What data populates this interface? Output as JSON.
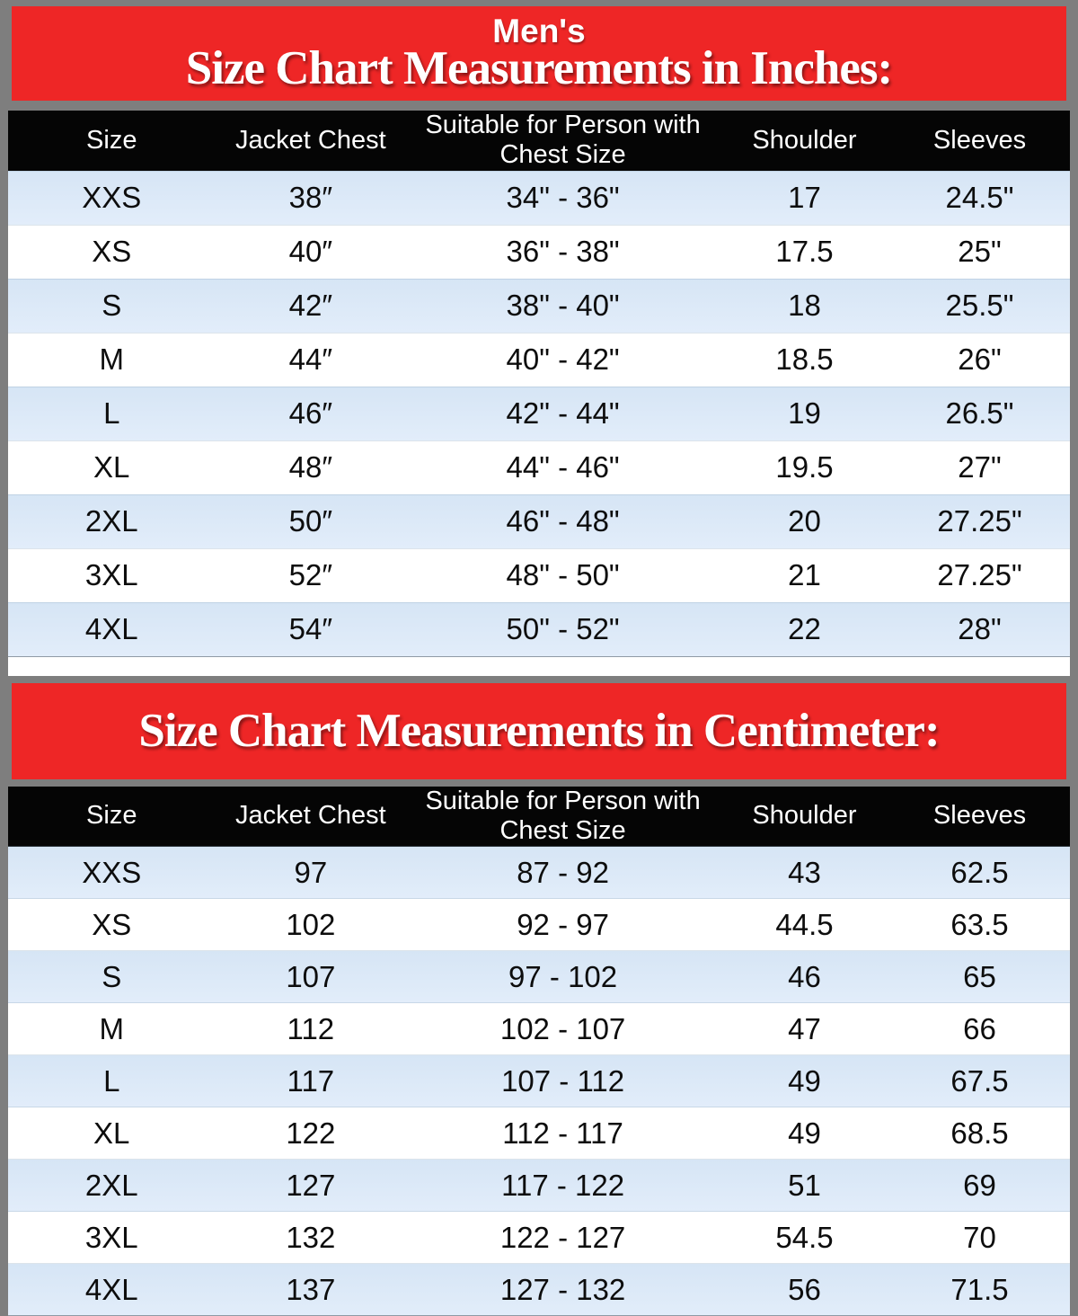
{
  "frame": {
    "border_color": "#7e7e7e",
    "banner_red": "#ee2626",
    "header_black": "#050505",
    "row_blue": "#dbe8f7",
    "row_white": "#ffffff",
    "banner_text_color": "#ffffff"
  },
  "banner_inches": {
    "supertitle": "Men's",
    "title": "Size Chart Measurements in Inches:"
  },
  "banner_cm": {
    "title": "Size Chart Measurements in Centimeter:"
  },
  "chart_data": [
    {
      "type": "table",
      "title": "Men's Size Chart Measurements in Inches:",
      "columns": [
        "Size",
        "Jacket Chest",
        "Suitable for Person with Chest Size",
        "Shoulder",
        "Sleeves"
      ],
      "rows": [
        [
          "XXS",
          "38″",
          "34\" - 36\"",
          "17",
          "24.5\""
        ],
        [
          "XS",
          "40″",
          "36\" - 38\"",
          "17.5",
          "25\""
        ],
        [
          "S",
          "42″",
          "38\" - 40\"",
          "18",
          "25.5\""
        ],
        [
          "M",
          "44″",
          "40\" - 42\"",
          "18.5",
          "26\""
        ],
        [
          "L",
          "46″",
          "42\" - 44\"",
          "19",
          "26.5\""
        ],
        [
          "XL",
          "48″",
          "44\" - 46\"",
          "19.5",
          "27\""
        ],
        [
          "2XL",
          "50″",
          "46\" - 48\"",
          "20",
          "27.25\""
        ],
        [
          "3XL",
          "52″",
          "48\" - 50\"",
          "21",
          "27.25\""
        ],
        [
          "4XL",
          "54″",
          "50\" - 52\"",
          "22",
          "28\""
        ]
      ]
    },
    {
      "type": "table",
      "title": "Size Chart Measurements in Centimeter:",
      "columns": [
        "Size",
        "Jacket Chest",
        "Suitable for Person with Chest Size",
        "Shoulder",
        "Sleeves"
      ],
      "rows": [
        [
          "XXS",
          "97",
          "87 - 92",
          "43",
          "62.5"
        ],
        [
          "XS",
          "102",
          "92 - 97",
          "44.5",
          "63.5"
        ],
        [
          "S",
          "107",
          "97 - 102",
          "46",
          "65"
        ],
        [
          "M",
          "112",
          "102 - 107",
          "47",
          "66"
        ],
        [
          "L",
          "117",
          "107 - 112",
          "49",
          "67.5"
        ],
        [
          "XL",
          "122",
          "112 - 117",
          "49",
          "68.5"
        ],
        [
          "2XL",
          "127",
          "117 - 122",
          "51",
          "69"
        ],
        [
          "3XL",
          "132",
          "122 - 127",
          "54.5",
          "70"
        ],
        [
          "4XL",
          "137",
          "127 - 132",
          "56",
          "71.5"
        ]
      ]
    }
  ]
}
